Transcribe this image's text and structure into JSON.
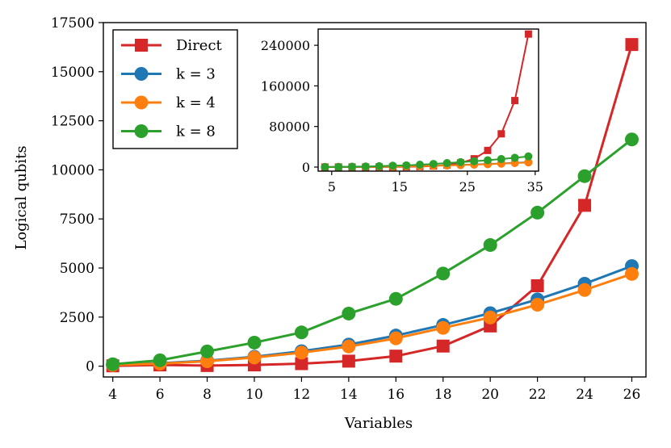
{
  "chart_data": {
    "type": "line",
    "xlabel": "Variables",
    "ylabel": "Logical qubits",
    "x": [
      4,
      6,
      8,
      10,
      12,
      14,
      16,
      18,
      20,
      22,
      24,
      26
    ],
    "xlim": [
      3.6,
      26.6
    ],
    "ylim": [
      -550,
      17500
    ],
    "xticks": [
      4,
      6,
      8,
      10,
      12,
      14,
      16,
      18,
      20,
      22,
      24,
      26
    ],
    "yticks": [
      0,
      2500,
      5000,
      7500,
      10000,
      12500,
      15000,
      17500
    ],
    "grid": false,
    "legend_position": "upper-left",
    "series": [
      {
        "name": "Direct",
        "color": "#d62728",
        "marker": "square",
        "values": [
          16,
          64,
          32,
          64,
          128,
          256,
          512,
          1024,
          2048,
          4096,
          8192,
          16384
        ]
      },
      {
        "name": "k = 3",
        "color": "#1f77b4",
        "marker": "circle",
        "values": [
          70,
          150,
          280,
          480,
          760,
          1100,
          1560,
          2100,
          2700,
          3400,
          4200,
          5100
        ]
      },
      {
        "name": "k = 4",
        "color": "#ff7f0e",
        "marker": "circle",
        "values": [
          60,
          130,
          250,
          440,
          690,
          1000,
          1420,
          1950,
          2480,
          3130,
          3880,
          4700
        ]
      },
      {
        "name": "k = 8",
        "color": "#2ca02c",
        "marker": "circle",
        "values": [
          100,
          300,
          750,
          1200,
          1720,
          2680,
          3430,
          4720,
          6170,
          7820,
          9680,
          11550
        ]
      }
    ],
    "inset": {
      "type": "line",
      "xlim": [
        3,
        35.5
      ],
      "ylim": [
        -8000,
        272000
      ],
      "xticks": [
        5,
        15,
        25,
        35
      ],
      "yticks": [
        0,
        80000,
        160000,
        240000
      ],
      "x": [
        4,
        6,
        8,
        10,
        12,
        14,
        16,
        18,
        20,
        22,
        24,
        26,
        28,
        30,
        32,
        34
      ],
      "series": [
        {
          "name": "Direct",
          "color": "#d62728",
          "marker": "square",
          "values": [
            16,
            64,
            32,
            64,
            128,
            256,
            512,
            1024,
            2048,
            4096,
            8192,
            16384,
            32768,
            65536,
            131072,
            262144
          ]
        },
        {
          "name": "k = 3",
          "color": "#1f77b4",
          "marker": "circle",
          "values": [
            70,
            150,
            280,
            480,
            760,
            1100,
            1560,
            2100,
            2700,
            3400,
            4200,
            5100,
            6100,
            7200,
            8400,
            9700
          ]
        },
        {
          "name": "k = 4",
          "color": "#ff7f0e",
          "marker": "circle",
          "values": [
            60,
            130,
            250,
            440,
            690,
            1000,
            1420,
            1950,
            2480,
            3130,
            3880,
            4700,
            5600,
            6700,
            7900,
            9200
          ]
        },
        {
          "name": "k = 8",
          "color": "#2ca02c",
          "marker": "circle",
          "values": [
            100,
            300,
            750,
            1200,
            1720,
            2680,
            3430,
            4720,
            6170,
            7820,
            9680,
            11550,
            13500,
            15800,
            18300,
            21000
          ]
        }
      ]
    }
  }
}
